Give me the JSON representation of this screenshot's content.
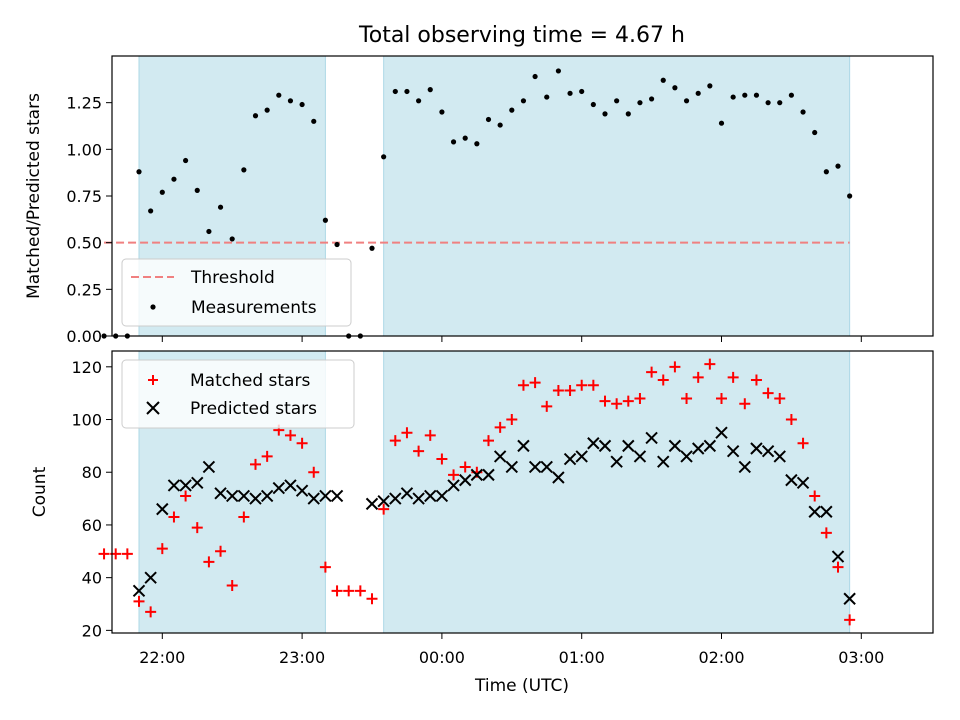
{
  "title": "Total observing time = 4.67 h",
  "colors": {
    "shade": "#add8e6",
    "threshold": "#f08080",
    "measure": "#000000",
    "matched": "#ff0000",
    "predicted": "#000000"
  },
  "chart_data": [
    {
      "type": "scatter",
      "title": "Total observing time = 4.67 h",
      "ylabel": "Matched/Predicted stars",
      "ylim": [
        0,
        1.5
      ],
      "yticks": [
        "0.00",
        "0.25",
        "0.50",
        "0.75",
        "1.00",
        "1.25"
      ],
      "legend": "lower-left",
      "legend_entries": [
        "Threshold",
        "Measurements"
      ],
      "threshold": {
        "name": "Threshold",
        "y": 0.5,
        "x_start": "21:35",
        "x_end": "02:55"
      },
      "observing_windows": [
        [
          "21:50",
          "23:10"
        ],
        [
          "23:35",
          "02:55"
        ]
      ],
      "series": [
        {
          "name": "Measurements",
          "x": [
            "21:35",
            "21:40",
            "21:45",
            "21:50",
            "21:55",
            "22:00",
            "22:05",
            "22:10",
            "22:15",
            "22:20",
            "22:25",
            "22:30",
            "22:35",
            "22:40",
            "22:45",
            "22:50",
            "22:55",
            "23:00",
            "23:05",
            "23:10",
            "23:15",
            "23:20",
            "23:25",
            "23:30",
            "23:35",
            "23:40",
            "23:45",
            "23:50",
            "23:55",
            "00:00",
            "00:05",
            "00:10",
            "00:15",
            "00:20",
            "00:25",
            "00:30",
            "00:35",
            "00:40",
            "00:45",
            "00:50",
            "00:55",
            "01:00",
            "01:05",
            "01:10",
            "01:15",
            "01:20",
            "01:25",
            "01:30",
            "01:35",
            "01:40",
            "01:45",
            "01:50",
            "01:55",
            "02:00",
            "02:05",
            "02:10",
            "02:15",
            "02:20",
            "02:25",
            "02:30",
            "02:35",
            "02:40",
            "02:45",
            "02:50",
            "02:55"
          ],
          "values": [
            0,
            0,
            0,
            0.88,
            0.67,
            0.77,
            0.84,
            0.94,
            0.78,
            0.56,
            0.69,
            0.52,
            0.89,
            1.18,
            1.21,
            1.29,
            1.26,
            1.24,
            1.15,
            0.62,
            0.49,
            0,
            0,
            0.47,
            0.96,
            1.31,
            1.31,
            1.26,
            1.32,
            1.2,
            1.04,
            1.06,
            1.03,
            1.16,
            1.13,
            1.21,
            1.26,
            1.39,
            1.28,
            1.42,
            1.3,
            1.31,
            1.24,
            1.19,
            1.26,
            1.19,
            1.25,
            1.27,
            1.37,
            1.33,
            1.26,
            1.3,
            1.34,
            1.14,
            1.28,
            1.29,
            1.29,
            1.25,
            1.25,
            1.29,
            1.2,
            1.09,
            0.88,
            0.91,
            0.75
          ]
        }
      ]
    },
    {
      "type": "scatter",
      "xlabel": "Time (UTC)",
      "ylabel": "Count",
      "ylim": [
        19,
        126
      ],
      "yticks": [
        "20",
        "40",
        "60",
        "80",
        "100",
        "120"
      ],
      "xticks": [
        "22:00",
        "23:00",
        "00:00",
        "01:00",
        "02:00",
        "03:00"
      ],
      "legend": "top-left",
      "legend_entries": [
        "Matched stars",
        "Predicted stars"
      ],
      "observing_windows": [
        [
          "21:50",
          "23:10"
        ],
        [
          "23:35",
          "02:55"
        ]
      ],
      "series": [
        {
          "name": "Matched stars",
          "marker": "+",
          "x": [
            "21:35",
            "21:40",
            "21:45",
            "21:50",
            "21:55",
            "22:00",
            "22:05",
            "22:10",
            "22:15",
            "22:20",
            "22:25",
            "22:30",
            "22:35",
            "22:40",
            "22:45",
            "22:50",
            "22:55",
            "23:00",
            "23:05",
            "23:10",
            "23:15",
            "23:20",
            "23:25",
            "23:30",
            "23:35",
            "23:40",
            "23:45",
            "23:50",
            "23:55",
            "00:00",
            "00:05",
            "00:10",
            "00:15",
            "00:20",
            "00:25",
            "00:30",
            "00:35",
            "00:40",
            "00:45",
            "00:50",
            "00:55",
            "01:00",
            "01:05",
            "01:10",
            "01:15",
            "01:20",
            "01:25",
            "01:30",
            "01:35",
            "01:40",
            "01:45",
            "01:50",
            "01:55",
            "02:00",
            "02:05",
            "02:10",
            "02:15",
            "02:20",
            "02:25",
            "02:30",
            "02:35",
            "02:40",
            "02:45",
            "02:50",
            "02:55"
          ],
          "values": [
            49,
            49,
            49,
            31,
            27,
            51,
            63,
            71,
            59,
            46,
            50,
            37,
            63,
            83,
            86,
            96,
            94,
            91,
            80,
            44,
            35,
            35,
            35,
            32,
            66,
            92,
            95,
            88,
            94,
            85,
            79,
            82,
            80,
            92,
            97,
            100,
            113,
            114,
            105,
            111,
            111,
            113,
            113,
            107,
            106,
            107,
            108,
            118,
            115,
            120,
            108,
            116,
            121,
            108,
            116,
            106,
            115,
            110,
            108,
            100,
            91,
            71,
            57,
            44,
            24
          ]
        },
        {
          "name": "Predicted stars",
          "marker": "x",
          "x": [
            "21:50",
            "21:55",
            "22:00",
            "22:05",
            "22:10",
            "22:15",
            "22:20",
            "22:25",
            "22:30",
            "22:35",
            "22:40",
            "22:45",
            "22:50",
            "22:55",
            "23:00",
            "23:05",
            "23:10",
            "23:15",
            "23:30",
            "23:35",
            "23:40",
            "23:45",
            "23:50",
            "23:55",
            "00:00",
            "00:05",
            "00:10",
            "00:15",
            "00:20",
            "00:25",
            "00:30",
            "00:35",
            "00:40",
            "00:45",
            "00:50",
            "00:55",
            "01:00",
            "01:05",
            "01:10",
            "01:15",
            "01:20",
            "01:25",
            "01:30",
            "01:35",
            "01:40",
            "01:45",
            "01:50",
            "01:55",
            "02:00",
            "02:05",
            "02:10",
            "02:15",
            "02:20",
            "02:25",
            "02:30",
            "02:35",
            "02:40",
            "02:45",
            "02:50",
            "02:55"
          ],
          "values": [
            35,
            40,
            66,
            75,
            75,
            76,
            82,
            72,
            71,
            71,
            70,
            71,
            74,
            75,
            73,
            70,
            71,
            71,
            68,
            69,
            70,
            72,
            70,
            71,
            71,
            75,
            77,
            79,
            79,
            86,
            82,
            90,
            82,
            82,
            78,
            85,
            86,
            91,
            90,
            84,
            90,
            86,
            93,
            84,
            90,
            86,
            89,
            90,
            95,
            88,
            82,
            89,
            88,
            86,
            77,
            76,
            65,
            65,
            48,
            32
          ]
        }
      ]
    }
  ]
}
